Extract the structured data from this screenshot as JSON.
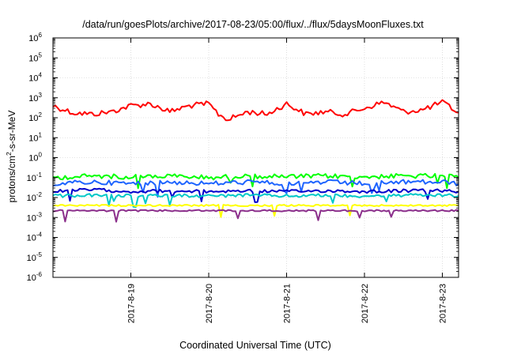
{
  "chart_data": {
    "type": "line",
    "title": "/data/run/goesPlots/archive/2017-08-23/05:00/flux/../flux/5daysMoonFluxes.txt",
    "xlabel": "Coordinated Universal Time (UTC)",
    "ylabel": "protons/cm2-s-sr-MeV",
    "y_scale": "log",
    "ylim": [
      1e-06,
      1000000.0
    ],
    "y_ticks": [
      {
        "exp": "-6",
        "value": 1e-06
      },
      {
        "exp": "-5",
        "value": 1e-05
      },
      {
        "exp": "-4",
        "value": 0.0001
      },
      {
        "exp": "-3",
        "value": 0.001
      },
      {
        "exp": "-2",
        "value": 0.01
      },
      {
        "exp": "-1",
        "value": 0.1
      },
      {
        "exp": "0",
        "value": 1
      },
      {
        "exp": "1",
        "value": 10
      },
      {
        "exp": "2",
        "value": 100
      },
      {
        "exp": "3",
        "value": 1000
      },
      {
        "exp": "4",
        "value": 10000
      },
      {
        "exp": "5",
        "value": 100000
      },
      {
        "exp": "6",
        "value": 1000000
      }
    ],
    "xlim": [
      "2017-08-18T00:00",
      "2017-08-23T05:00"
    ],
    "x_ticks": [
      "2017-8-19",
      "2017-8-20",
      "2017-8-21",
      "2017-8-22",
      "2017-8-23"
    ],
    "grid": true,
    "series": [
      {
        "color": "#ff0000",
        "x": [
          "2017-08-18T00:00",
          "2017-08-18T06:00",
          "2017-08-18T12:00",
          "2017-08-18T18:00",
          "2017-08-19T00:00",
          "2017-08-19T06:00",
          "2017-08-19T12:00",
          "2017-08-19T18:00",
          "2017-08-20T00:00",
          "2017-08-20T03:00",
          "2017-08-20T06:00",
          "2017-08-20T12:00",
          "2017-08-20T18:00",
          "2017-08-21T00:00",
          "2017-08-21T06:00",
          "2017-08-21T12:00",
          "2017-08-21T18:00",
          "2017-08-22T00:00",
          "2017-08-22T06:00",
          "2017-08-22T12:00",
          "2017-08-22T18:00",
          "2017-08-23T00:00",
          "2017-08-23T05:00"
        ],
        "values": [
          400,
          180,
          150,
          200,
          400,
          500,
          200,
          400,
          500,
          150,
          80,
          200,
          150,
          500,
          150,
          200,
          150,
          300,
          600,
          200,
          250,
          600,
          180
        ]
      },
      {
        "color": "#00ff00",
        "x": [
          "2017-08-18T00:00",
          "2017-08-18T12:00",
          "2017-08-19T00:00",
          "2017-08-19T12:00",
          "2017-08-20T00:00",
          "2017-08-20T12:00",
          "2017-08-21T00:00",
          "2017-08-21T12:00",
          "2017-08-22T00:00",
          "2017-08-22T12:00",
          "2017-08-23T00:00",
          "2017-08-23T05:00"
        ],
        "values": [
          0.1,
          0.12,
          0.11,
          0.12,
          0.1,
          0.12,
          0.11,
          0.12,
          0.11,
          0.12,
          0.12,
          0.1
        ]
      },
      {
        "color": "#1e64ff",
        "x": [
          "2017-08-18T00:00",
          "2017-08-18T12:00",
          "2017-08-19T00:00",
          "2017-08-19T12:00",
          "2017-08-20T00:00",
          "2017-08-20T12:00",
          "2017-08-21T00:00",
          "2017-08-21T12:00",
          "2017-08-22T00:00",
          "2017-08-22T12:00",
          "2017-08-23T00:00",
          "2017-08-23T05:00"
        ],
        "values": [
          0.05,
          0.06,
          0.05,
          0.06,
          0.05,
          0.06,
          0.05,
          0.06,
          0.05,
          0.06,
          0.06,
          0.05
        ]
      },
      {
        "color": "#0000cc",
        "x": [
          "2017-08-18T00:00",
          "2017-08-18T12:00",
          "2017-08-19T00:00",
          "2017-08-19T12:00",
          "2017-08-20T00:00",
          "2017-08-20T12:00",
          "2017-08-21T00:00",
          "2017-08-21T12:00",
          "2017-08-22T00:00",
          "2017-08-22T12:00",
          "2017-08-23T00:00",
          "2017-08-23T05:00"
        ],
        "values": [
          0.02,
          0.025,
          0.02,
          0.022,
          0.02,
          0.022,
          0.02,
          0.022,
          0.02,
          0.022,
          0.022,
          0.02
        ]
      },
      {
        "color": "#00c8c8",
        "x": [
          "2017-08-18T00:00",
          "2017-08-18T12:00",
          "2017-08-19T00:00",
          "2017-08-19T12:00",
          "2017-08-20T00:00",
          "2017-08-20T12:00",
          "2017-08-21T00:00",
          "2017-08-21T12:00",
          "2017-08-22T00:00",
          "2017-08-22T12:00",
          "2017-08-23T00:00",
          "2017-08-23T05:00"
        ],
        "values": [
          0.012,
          0.013,
          0.012,
          0.013,
          0.012,
          0.013,
          0.012,
          0.013,
          0.012,
          0.013,
          0.013,
          0.012
        ]
      },
      {
        "color": "#ffff00",
        "x": [
          "2017-08-18T00:00",
          "2017-08-18T12:00",
          "2017-08-19T00:00",
          "2017-08-19T12:00",
          "2017-08-20T00:00",
          "2017-08-20T12:00",
          "2017-08-21T00:00",
          "2017-08-21T12:00",
          "2017-08-22T00:00",
          "2017-08-22T12:00",
          "2017-08-23T00:00",
          "2017-08-23T05:00"
        ],
        "values": [
          0.004,
          0.004,
          0.004,
          0.004,
          0.004,
          0.004,
          0.004,
          0.004,
          0.004,
          0.004,
          0.004,
          0.004
        ]
      },
      {
        "color": "#8b2f8b",
        "x": [
          "2017-08-18T00:00",
          "2017-08-18T12:00",
          "2017-08-19T00:00",
          "2017-08-19T12:00",
          "2017-08-20T00:00",
          "2017-08-20T12:00",
          "2017-08-21T00:00",
          "2017-08-21T12:00",
          "2017-08-22T00:00",
          "2017-08-22T12:00",
          "2017-08-23T00:00",
          "2017-08-23T05:00"
        ],
        "values": [
          0.0022,
          0.0022,
          0.0022,
          0.0022,
          0.0022,
          0.0022,
          0.0022,
          0.0022,
          0.0022,
          0.0022,
          0.0022,
          0.0022
        ]
      }
    ]
  }
}
